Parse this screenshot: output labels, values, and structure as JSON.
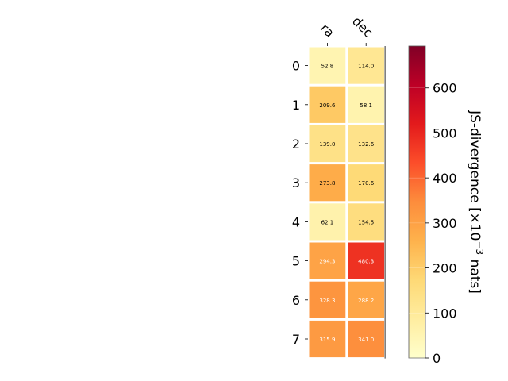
{
  "chart_data": {
    "type": "heatmap",
    "title": "",
    "columns": [
      "ra",
      "dec"
    ],
    "rows": [
      "0",
      "1",
      "2",
      "3",
      "4",
      "5",
      "6",
      "7"
    ],
    "values": [
      [
        52.8,
        114.0
      ],
      [
        209.6,
        58.1
      ],
      [
        139.0,
        132.6
      ],
      [
        273.8,
        170.6
      ],
      [
        62.1,
        154.5
      ],
      [
        294.3,
        480.3
      ],
      [
        328.3,
        288.2
      ],
      [
        315.9,
        341.0
      ]
    ],
    "value_labels": [
      [
        "52.8",
        "114.0"
      ],
      [
        "209.6",
        "58.1"
      ],
      [
        "139.0",
        "132.6"
      ],
      [
        "273.8",
        "170.6"
      ],
      [
        "62.1",
        "154.5"
      ],
      [
        "294.3",
        "480.3"
      ],
      [
        "328.3",
        "288.2"
      ],
      [
        "315.9",
        "341.0"
      ]
    ],
    "colormap": "YlOrRd",
    "colorbar": {
      "label": "JS-divergence [×10",
      "label_exponent": "−3",
      "label_suffix": " nats]",
      "range": [
        0,
        693
      ],
      "ticks": [
        0,
        100,
        200,
        300,
        400,
        500,
        600
      ],
      "tick_labels": [
        "0",
        "100",
        "200",
        "300",
        "400",
        "500",
        "600"
      ]
    },
    "grid": false
  }
}
